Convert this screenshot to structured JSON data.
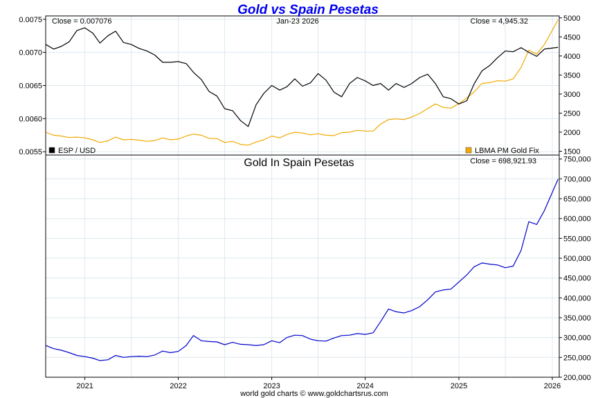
{
  "chart_data": [
    {
      "type": "line",
      "title": "Gold vs Spain Pesetas",
      "date_label": "Jan-23  2026",
      "left_close_label": "Close = 0.007076",
      "right_close_label": "Close = 4,945.32",
      "series": [
        {
          "name": "ESP / USD",
          "axis": "left",
          "color": "#000000",
          "points": [
            [
              "2020-08-01",
              0.00712
            ],
            [
              "2020-09-01",
              0.00705
            ],
            [
              "2020-10-01",
              0.00709
            ],
            [
              "2020-11-01",
              0.00716
            ],
            [
              "2020-12-01",
              0.00733
            ],
            [
              "2021-01-01",
              0.00737
            ],
            [
              "2021-02-01",
              0.00729
            ],
            [
              "2021-03-01",
              0.00714
            ],
            [
              "2021-04-01",
              0.00725
            ],
            [
              "2021-05-01",
              0.00732
            ],
            [
              "2021-06-01",
              0.00715
            ],
            [
              "2021-07-01",
              0.00712
            ],
            [
              "2021-08-01",
              0.00706
            ],
            [
              "2021-09-01",
              0.00702
            ],
            [
              "2021-10-01",
              0.00696
            ],
            [
              "2021-11-01",
              0.00685
            ],
            [
              "2021-12-01",
              0.00685
            ],
            [
              "2022-01-01",
              0.00686
            ],
            [
              "2022-02-01",
              0.00683
            ],
            [
              "2022-03-01",
              0.0067
            ],
            [
              "2022-04-01",
              0.00659
            ],
            [
              "2022-05-01",
              0.00641
            ],
            [
              "2022-06-01",
              0.00634
            ],
            [
              "2022-07-01",
              0.00615
            ],
            [
              "2022-08-01",
              0.00612
            ],
            [
              "2022-09-01",
              0.00597
            ],
            [
              "2022-10-01",
              0.00588
            ],
            [
              "2022-11-01",
              0.00621
            ],
            [
              "2022-12-01",
              0.00638
            ],
            [
              "2023-01-01",
              0.0065
            ],
            [
              "2023-02-01",
              0.00643
            ],
            [
              "2023-03-01",
              0.00648
            ],
            [
              "2023-04-01",
              0.0066
            ],
            [
              "2023-05-01",
              0.00649
            ],
            [
              "2023-06-01",
              0.00654
            ],
            [
              "2023-07-01",
              0.00668
            ],
            [
              "2023-08-01",
              0.00658
            ],
            [
              "2023-09-01",
              0.0064
            ],
            [
              "2023-10-01",
              0.00633
            ],
            [
              "2023-11-01",
              0.00653
            ],
            [
              "2023-12-01",
              0.00662
            ],
            [
              "2024-01-01",
              0.00657
            ],
            [
              "2024-02-01",
              0.0065
            ],
            [
              "2024-03-01",
              0.00653
            ],
            [
              "2024-04-01",
              0.00643
            ],
            [
              "2024-05-01",
              0.00653
            ],
            [
              "2024-06-01",
              0.00647
            ],
            [
              "2024-07-01",
              0.00653
            ],
            [
              "2024-08-01",
              0.00662
            ],
            [
              "2024-09-01",
              0.00667
            ],
            [
              "2024-10-01",
              0.00653
            ],
            [
              "2024-11-01",
              0.00633
            ],
            [
              "2024-12-01",
              0.0063
            ],
            [
              "2025-01-01",
              0.00622
            ],
            [
              "2025-02-01",
              0.00627
            ],
            [
              "2025-03-01",
              0.00652
            ],
            [
              "2025-04-01",
              0.00672
            ],
            [
              "2025-05-01",
              0.0068
            ],
            [
              "2025-06-01",
              0.00692
            ],
            [
              "2025-07-01",
              0.00702
            ],
            [
              "2025-08-01",
              0.00701
            ],
            [
              "2025-09-01",
              0.00707
            ],
            [
              "2025-10-01",
              0.007
            ],
            [
              "2025-11-01",
              0.00694
            ],
            [
              "2025-12-01",
              0.00705
            ],
            [
              "2026-01-23",
              0.007076
            ]
          ]
        },
        {
          "name": "LBMA PM Gold Fix",
          "axis": "right",
          "color": "#f2a900",
          "points": [
            [
              "2020-08-01",
              2000
            ],
            [
              "2020-09-01",
              1920
            ],
            [
              "2020-10-01",
              1900
            ],
            [
              "2020-11-01",
              1860
            ],
            [
              "2020-12-01",
              1870
            ],
            [
              "2021-01-01",
              1850
            ],
            [
              "2021-02-01",
              1800
            ],
            [
              "2021-03-01",
              1730
            ],
            [
              "2021-04-01",
              1770
            ],
            [
              "2021-05-01",
              1870
            ],
            [
              "2021-06-01",
              1800
            ],
            [
              "2021-07-01",
              1810
            ],
            [
              "2021-08-01",
              1790
            ],
            [
              "2021-09-01",
              1760
            ],
            [
              "2021-10-01",
              1780
            ],
            [
              "2021-11-01",
              1850
            ],
            [
              "2021-12-01",
              1800
            ],
            [
              "2022-01-01",
              1820
            ],
            [
              "2022-02-01",
              1900
            ],
            [
              "2022-03-01",
              1950
            ],
            [
              "2022-04-01",
              1920
            ],
            [
              "2022-05-01",
              1840
            ],
            [
              "2022-06-01",
              1830
            ],
            [
              "2022-07-01",
              1730
            ],
            [
              "2022-08-01",
              1760
            ],
            [
              "2022-09-01",
              1680
            ],
            [
              "2022-10-01",
              1660
            ],
            [
              "2022-11-01",
              1740
            ],
            [
              "2022-12-01",
              1800
            ],
            [
              "2023-01-01",
              1900
            ],
            [
              "2023-02-01",
              1850
            ],
            [
              "2023-03-01",
              1940
            ],
            [
              "2023-04-01",
              2000
            ],
            [
              "2023-05-01",
              1980
            ],
            [
              "2023-06-01",
              1930
            ],
            [
              "2023-07-01",
              1960
            ],
            [
              "2023-08-01",
              1920
            ],
            [
              "2023-09-01",
              1910
            ],
            [
              "2023-10-01",
              1990
            ],
            [
              "2023-11-01",
              2000
            ],
            [
              "2023-12-01",
              2050
            ],
            [
              "2024-01-01",
              2030
            ],
            [
              "2024-02-01",
              2030
            ],
            [
              "2024-03-01",
              2210
            ],
            [
              "2024-04-01",
              2330
            ],
            [
              "2024-05-01",
              2350
            ],
            [
              "2024-06-01",
              2330
            ],
            [
              "2024-07-01",
              2400
            ],
            [
              "2024-08-01",
              2490
            ],
            [
              "2024-09-01",
              2620
            ],
            [
              "2024-10-01",
              2740
            ],
            [
              "2024-11-01",
              2650
            ],
            [
              "2024-12-01",
              2630
            ],
            [
              "2025-01-01",
              2750
            ],
            [
              "2025-02-01",
              2900
            ],
            [
              "2025-03-01",
              3050
            ],
            [
              "2025-04-01",
              3280
            ],
            [
              "2025-05-01",
              3300
            ],
            [
              "2025-06-01",
              3350
            ],
            [
              "2025-07-01",
              3340
            ],
            [
              "2025-08-01",
              3400
            ],
            [
              "2025-09-01",
              3700
            ],
            [
              "2025-10-01",
              4150
            ],
            [
              "2025-11-01",
              4050
            ],
            [
              "2025-12-01",
              4300
            ],
            [
              "2026-01-23",
              4945.32
            ]
          ]
        }
      ],
      "left_axis": {
        "ylim": [
          0.00545,
          0.00755
        ],
        "ticks": [
          "0.0055",
          "0.0060",
          "0.0065",
          "0.0070",
          "0.0075"
        ]
      },
      "right_axis": {
        "ylim": [
          1400,
          5050
        ],
        "ticks": [
          "1500",
          "2000",
          "2500",
          "3000",
          "3500",
          "4000",
          "4500",
          "5000"
        ]
      },
      "grid": true,
      "legend": [
        "ESP / USD",
        "LBMA PM Gold Fix"
      ]
    },
    {
      "type": "line",
      "title": "Gold In Spain Pesetas",
      "close_label": "Close = 698,921.93",
      "series": [
        {
          "axis": "right",
          "color": "#0000cc",
          "points": [
            [
              "2020-08-01",
              280000
            ],
            [
              "2020-09-01",
              272000
            ],
            [
              "2020-10-01",
              268000
            ],
            [
              "2020-11-01",
              262000
            ],
            [
              "2020-12-01",
              255000
            ],
            [
              "2021-01-01",
              252000
            ],
            [
              "2021-02-01",
              248000
            ],
            [
              "2021-03-01",
              242000
            ],
            [
              "2021-04-01",
              244000
            ],
            [
              "2021-05-01",
              255000
            ],
            [
              "2021-06-01",
              250000
            ],
            [
              "2021-07-01",
              252000
            ],
            [
              "2021-08-01",
              253000
            ],
            [
              "2021-09-01",
              252000
            ],
            [
              "2021-10-01",
              256000
            ],
            [
              "2021-11-01",
              266000
            ],
            [
              "2021-12-01",
              262000
            ],
            [
              "2022-01-01",
              265000
            ],
            [
              "2022-02-01",
              280000
            ],
            [
              "2022-03-01",
              305000
            ],
            [
              "2022-04-01",
              292000
            ],
            [
              "2022-05-01",
              290000
            ],
            [
              "2022-06-01",
              289000
            ],
            [
              "2022-07-01",
              282000
            ],
            [
              "2022-08-01",
              288000
            ],
            [
              "2022-09-01",
              283000
            ],
            [
              "2022-10-01",
              282000
            ],
            [
              "2022-11-01",
              280000
            ],
            [
              "2022-12-01",
              282000
            ],
            [
              "2023-01-01",
              292000
            ],
            [
              "2023-02-01",
              287000
            ],
            [
              "2023-03-01",
              300000
            ],
            [
              "2023-04-01",
              306000
            ],
            [
              "2023-05-01",
              305000
            ],
            [
              "2023-06-01",
              296000
            ],
            [
              "2023-07-01",
              292000
            ],
            [
              "2023-08-01",
              291000
            ],
            [
              "2023-09-01",
              299000
            ],
            [
              "2023-10-01",
              305000
            ],
            [
              "2023-11-01",
              306000
            ],
            [
              "2023-12-01",
              310000
            ],
            [
              "2024-01-01",
              308000
            ],
            [
              "2024-02-01",
              312000
            ],
            [
              "2024-03-01",
              340000
            ],
            [
              "2024-04-01",
              372000
            ],
            [
              "2024-05-01",
              365000
            ],
            [
              "2024-06-01",
              362000
            ],
            [
              "2024-07-01",
              368000
            ],
            [
              "2024-08-01",
              378000
            ],
            [
              "2024-09-01",
              395000
            ],
            [
              "2024-10-01",
              415000
            ],
            [
              "2024-11-01",
              420000
            ],
            [
              "2024-12-01",
              422000
            ],
            [
              "2025-01-01",
              440000
            ],
            [
              "2025-02-01",
              458000
            ],
            [
              "2025-03-01",
              478000
            ],
            [
              "2025-04-01",
              488000
            ],
            [
              "2025-05-01",
              485000
            ],
            [
              "2025-06-01",
              483000
            ],
            [
              "2025-07-01",
              476000
            ],
            [
              "2025-08-01",
              480000
            ],
            [
              "2025-09-01",
              520000
            ],
            [
              "2025-10-01",
              592000
            ],
            [
              "2025-11-01",
              585000
            ],
            [
              "2025-12-01",
              620000
            ],
            [
              "2026-01-23",
              698921.93
            ]
          ]
        }
      ],
      "right_axis": {
        "ylim": [
          200000,
          760000
        ],
        "ticks": [
          "200,000",
          "250,000",
          "300,000",
          "350,000",
          "400,000",
          "450,000",
          "500,000",
          "550,000",
          "600,000",
          "650,000",
          "700,000",
          "750,000"
        ]
      },
      "x_ticks": [
        "2021",
        "2022",
        "2023",
        "2024",
        "2025",
        "2026"
      ],
      "grid": true
    }
  ],
  "footer": "world gold charts © www.goldchartsrus.com"
}
